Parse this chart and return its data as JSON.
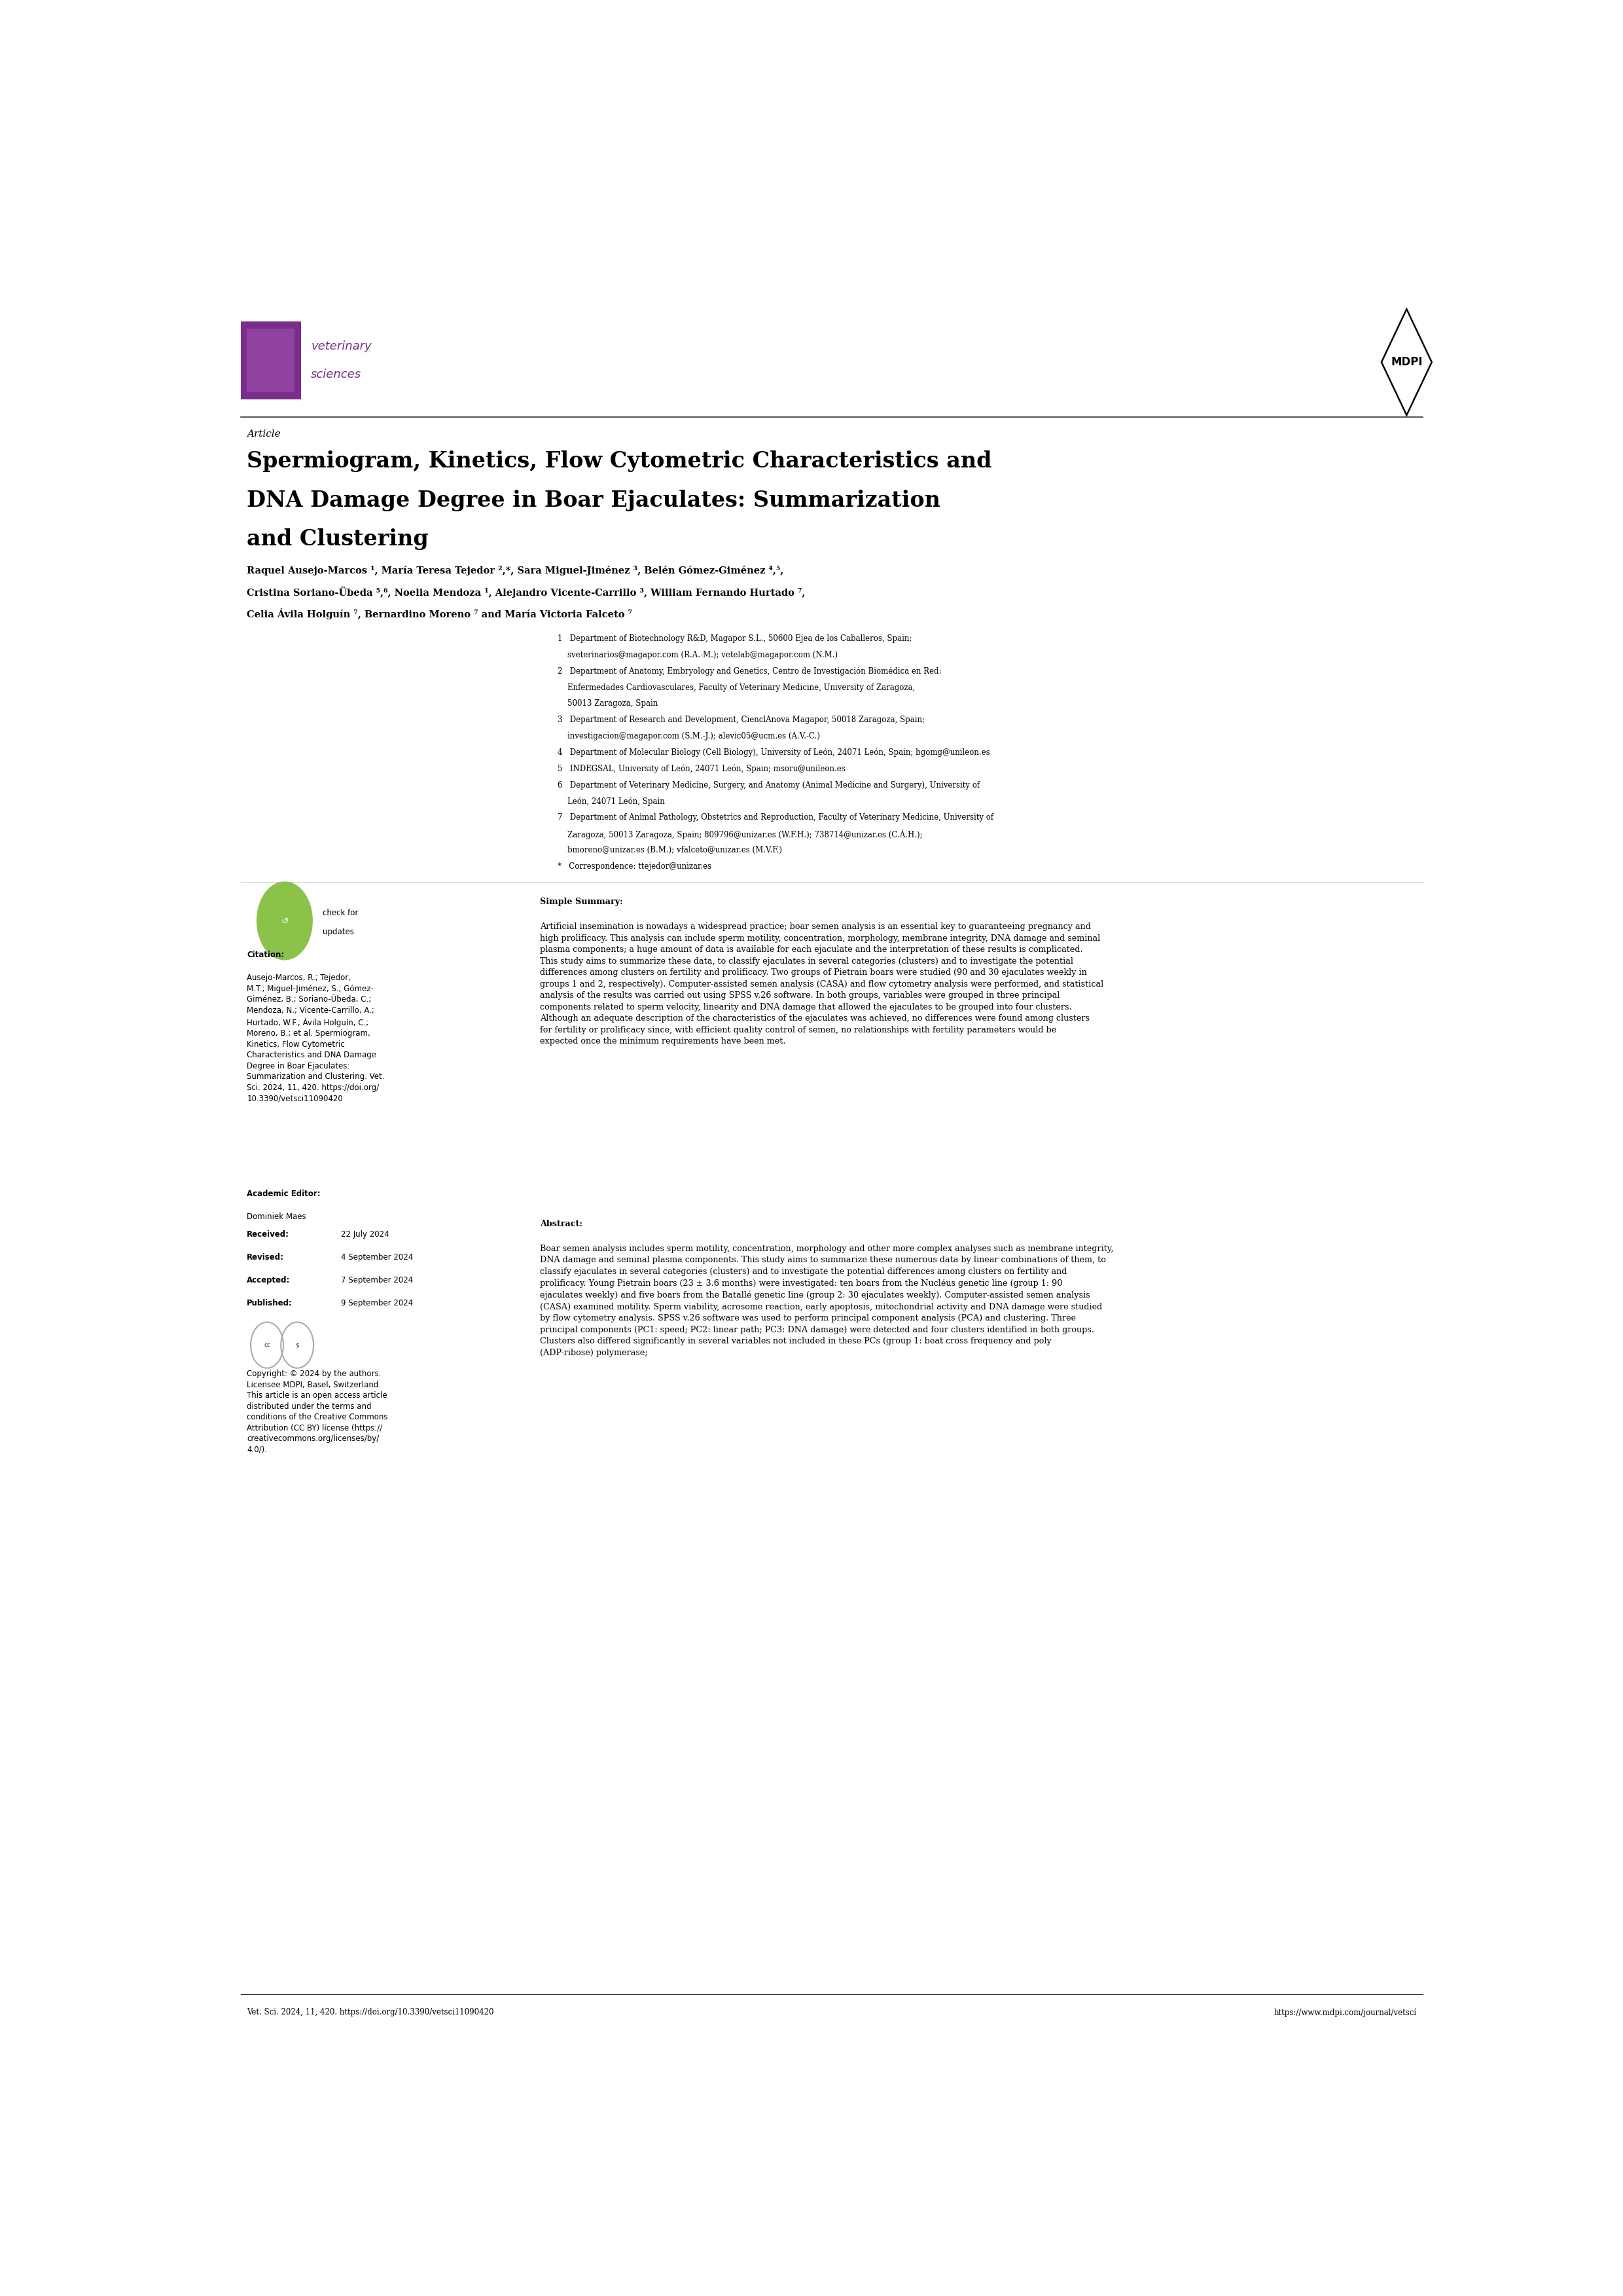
{
  "page_width": 24.8,
  "page_height": 35.07,
  "background_color": "#ffffff",
  "logo_box_color": "#7b2d8b",
  "journal_name_line1": "veterinary",
  "journal_name_line2": "sciences",
  "journal_text_color": "#7b2d8b",
  "mdpi_text": "MDPI",
  "article_label": "Article",
  "title_line1": "Spermiogram, Kinetics, Flow Cytometric Characteristics and",
  "title_line2": "DNA Damage Degree in Boar Ejaculates: Summarization",
  "title_line3": "and Clustering",
  "authors_line1": "Raquel Ausejo-Marcos ¹, María Teresa Tejedor ²,*, Sara Miguel-Jiménez ³, Belén Gómez-Giménez ⁴,⁵,",
  "authors_line2": "Cristina Soriano-Übeda ⁵,⁶, Noelia Mendoza ¹, Alejandro Vicente-Carrillo ³, William Fernando Hurtado ⁷,",
  "authors_line3": "Celia Ávila Holguín ⁷, Bernardino Moreno ⁷ and María Victoria Falceto ⁷",
  "aff1a": "1   Department of Biotechnology R&D, Magapor S.L., 50600 Ejea de los Caballeros, Spain;",
  "aff1b": "    sveterinarios@magapor.com (R.A.-M.); vetelab@magapor.com (N.M.)",
  "aff2a": "2   Department of Anatomy, Embryology and Genetics, Centro de Investigación Biomédica en Red:",
  "aff2b": "    Enfermedades Cardiovasculares, Faculty of Veterinary Medicine, University of Zaragoza,",
  "aff2c": "    50013 Zaragoza, Spain",
  "aff3a": "3   Department of Research and Development, CienclAnova Magapor, 50018 Zaragoza, Spain;",
  "aff3b": "    investigacion@magapor.com (S.M.-J.); alevic05@ucm.es (A.V.-C.)",
  "aff4": "4   Department of Molecular Biology (Cell Biology), University of León, 24071 León, Spain; bgomg@unileon.es",
  "aff5": "5   INDEGSAL, University of León, 24071 León, Spain; msoru@unileon.es",
  "aff6a": "6   Department of Veterinary Medicine, Surgery, and Anatomy (Animal Medicine and Surgery), University of",
  "aff6b": "    León, 24071 León, Spain",
  "aff7a": "7   Department of Animal Pathology, Obstetrics and Reproduction, Faculty of Veterinary Medicine, University of",
  "aff7b": "    Zaragoza, 50013 Zaragoza, Spain; 809796@unizar.es (W.F.H.); 738714@unizar.es (C.Á.H.);",
  "aff7c": "    bmoreno@unizar.es (B.M.); vfalceto@unizar.es (M.V.F.)",
  "aff_cor": "*   Correspondence: ttejedor@unizar.es",
  "simple_summary_label": "Simple Summary:",
  "simple_summary_lines": [
    "Artificial insemination is nowadays a widespread practice; boar semen analysis is an essential key to guaranteeing pregnancy and",
    "high prolificacy. This analysis can include sperm motility, concentration, morphology, membrane integrity, DNA damage and seminal",
    "plasma components; a huge amount of data is available for each ejaculate and the interpretation of these results is complicated.",
    "This study aims to summarize these data, to classify ejaculates in several categories (clusters) and to investigate the potential",
    "differences among clusters on fertility and prolificacy. Two groups of Pietrain boars were studied (90 and 30 ejaculates weekly in",
    "groups 1 and 2, respectively). Computer-assisted semen analysis (CASA) and flow cytometry analysis were performed, and statistical",
    "analysis of the results was carried out using SPSS v.26 software. In both groups, variables were grouped in three principal",
    "components related to sperm velocity, linearity and DNA damage that allowed the ejaculates to be grouped into four clusters.",
    "Although an adequate description of the characteristics of the ejaculates was achieved, no differences were found among clusters",
    "for fertility or prolificacy since, with efficient quality control of semen, no relationships with fertility parameters would be",
    "expected once the minimum requirements have been met."
  ],
  "abstract_label": "Abstract:",
  "abstract_lines": [
    "Boar semen analysis includes sperm motility, concentration, morphology and other more complex analyses such as membrane integrity,",
    "DNA damage and seminal plasma components. This study aims to summarize these numerous data by linear combinations of them, to",
    "classify ejaculates in several categories (clusters) and to investigate the potential differences among clusters on fertility and",
    "prolificacy. Young Pietrain boars (23 ± 3.6 months) were investigated: ten boars from the Nucléus genetic line (group 1: 90",
    "ejaculates weekly) and five boars from the Batallé genetic line (group 2: 30 ejaculates weekly). Computer-assisted semen analysis",
    "(CASA) examined motility. Sperm viability, acrosome reaction, early apoptosis, mitochondrial activity and DNA damage were studied",
    "by flow cytometry analysis. SPSS v.26 software was used to perform principal component analysis (PCA) and clustering. Three",
    "principal components (PC1: speed; PC2: linear path; PC3: DNA damage) were detected and four clusters identified in both groups.",
    "Clusters also differed significantly in several variables not included in these PCs (group 1: beat cross frequency and poly",
    "(ADP-ribose) polymerase;"
  ],
  "citation_label": "Citation:",
  "citation_lines": [
    "Ausejo-Marcos, R.; Tejedor,",
    "M.T.; Miguel-Jiménez, S.; Gómez-",
    "Giménez, B.; Soriano-Übeda, C.;",
    "Mendoza, N.; Vicente-Carrillo, A.;",
    "Hurtado, W.F.; Ávila Holguín, C.;",
    "Moreno, B.; et al. Spermiogram,",
    "Kinetics, Flow Cytometric",
    "Characteristics and DNA Damage",
    "Degree in Boar Ejaculates:",
    "Summarization and Clustering. Vet.",
    "Sci. 2024, 11, 420. https://doi.org/",
    "10.3390/vetsci11090420"
  ],
  "editor_label": "Academic Editor:",
  "editor_name": "Dominiek Maes",
  "received_label": "Received:",
  "received_val": "22 July 2024",
  "revised_label": "Revised:",
  "revised_val": "4 September 2024",
  "accepted_label": "Accepted:",
  "accepted_val": "7 September 2024",
  "published_label": "Published:",
  "published_val": "9 September 2024",
  "copyright_lines": [
    "Copyright: © 2024 by the authors.",
    "Licensee MDPI, Basel, Switzerland.",
    "This article is an open access article",
    "distributed under the terms and",
    "conditions of the Creative Commons",
    "Attribution (CC BY) license (https://",
    "creativecommons.org/licenses/by/",
    "4.0/)."
  ],
  "footer_left": "Vet. Sci. 2024, 11, 420. https://doi.org/10.3390/vetsci11090420",
  "footer_right": "https://www.mdpi.com/journal/vetscí"
}
